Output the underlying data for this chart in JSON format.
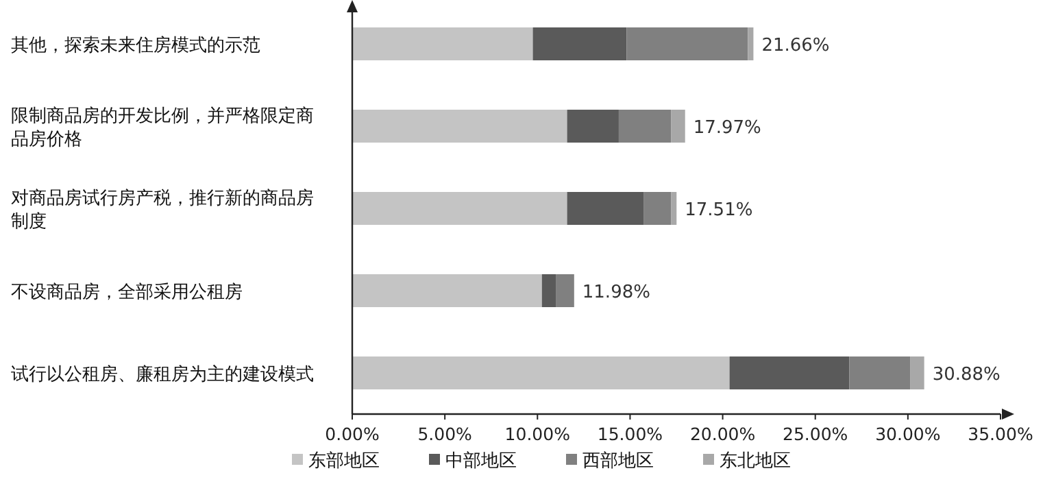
{
  "chart_data": {
    "type": "bar",
    "orientation": "horizontal",
    "stacked": true,
    "categories": [
      "其他，探索未来住房模式的示范",
      "限制商品房的开发比例，并严格限定商品房价格",
      "对商品房试行房产税，推行新的商品房制度",
      "不设商品房，全部采用公租房",
      "试行以公租房、廉租房为主的建设模式"
    ],
    "series": [
      {
        "name": "东部地区",
        "color": "#c4c4c4",
        "values": [
          9.75,
          11.6,
          11.6,
          10.24,
          20.37
        ]
      },
      {
        "name": "中部地区",
        "color": "#5a5a5a",
        "values": [
          5.06,
          2.79,
          4.15,
          0.75,
          6.47
        ]
      },
      {
        "name": "西部地区",
        "color": "#808080",
        "values": [
          6.55,
          2.82,
          1.46,
          0.99,
          3.28
        ]
      },
      {
        "name": "东北地区",
        "color": "#a8a8a8",
        "values": [
          0.3,
          0.76,
          0.3,
          0,
          0.76
        ]
      }
    ],
    "totals": [
      "21.66%",
      "17.97%",
      "17.51%",
      "11.98%",
      "30.88%"
    ],
    "xlim": [
      0,
      35
    ],
    "xticks": [
      {
        "value": 0,
        "label": "0.00%"
      },
      {
        "value": 5,
        "label": "5.00%"
      },
      {
        "value": 10,
        "label": "10.00%"
      },
      {
        "value": 15,
        "label": "15.00%"
      },
      {
        "value": 20,
        "label": "20.00%"
      },
      {
        "value": 25,
        "label": "25.00%"
      },
      {
        "value": 30,
        "label": "30.00%"
      },
      {
        "value": 35,
        "label": "35.00%"
      }
    ],
    "grid": false,
    "legend": "bottom"
  }
}
